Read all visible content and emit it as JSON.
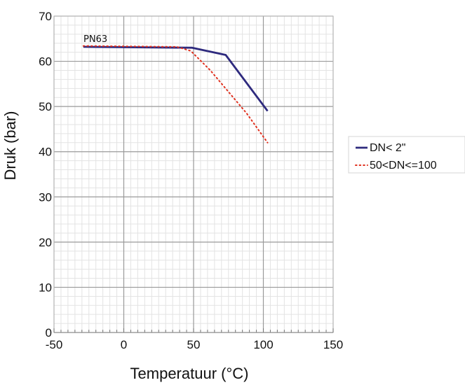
{
  "chart_data": {
    "type": "line",
    "title": "",
    "xlabel": "Temperatuur (°C)",
    "ylabel": "Druk (bar)",
    "xlim": [
      -50,
      150
    ],
    "ylim": [
      0,
      70
    ],
    "xticks": [
      -50,
      0,
      50,
      100,
      150
    ],
    "yticks": [
      0,
      10,
      20,
      30,
      40,
      50,
      60,
      70
    ],
    "x_tick_labels": [
      "-50",
      "0",
      "50",
      "100",
      "150"
    ],
    "y_tick_labels": [
      "0",
      "10",
      "20",
      "30",
      "40",
      "50",
      "60",
      "70"
    ],
    "grid": true,
    "legend_position": "right",
    "annotation": "PN63",
    "series": [
      {
        "name": "DN< 2\"",
        "style": "solid",
        "color": "#2e2a7e",
        "x": [
          -29,
          49,
          73,
          103
        ],
        "y": [
          63.2,
          63.0,
          61.4,
          49.0
        ]
      },
      {
        "name": "50<DN<=100",
        "style": "dotted",
        "color": "#e0301e",
        "x": [
          -29,
          38,
          48,
          62,
          88,
          103
        ],
        "y": [
          63.4,
          63.2,
          62.3,
          58.0,
          48.5,
          42.0
        ]
      }
    ]
  }
}
